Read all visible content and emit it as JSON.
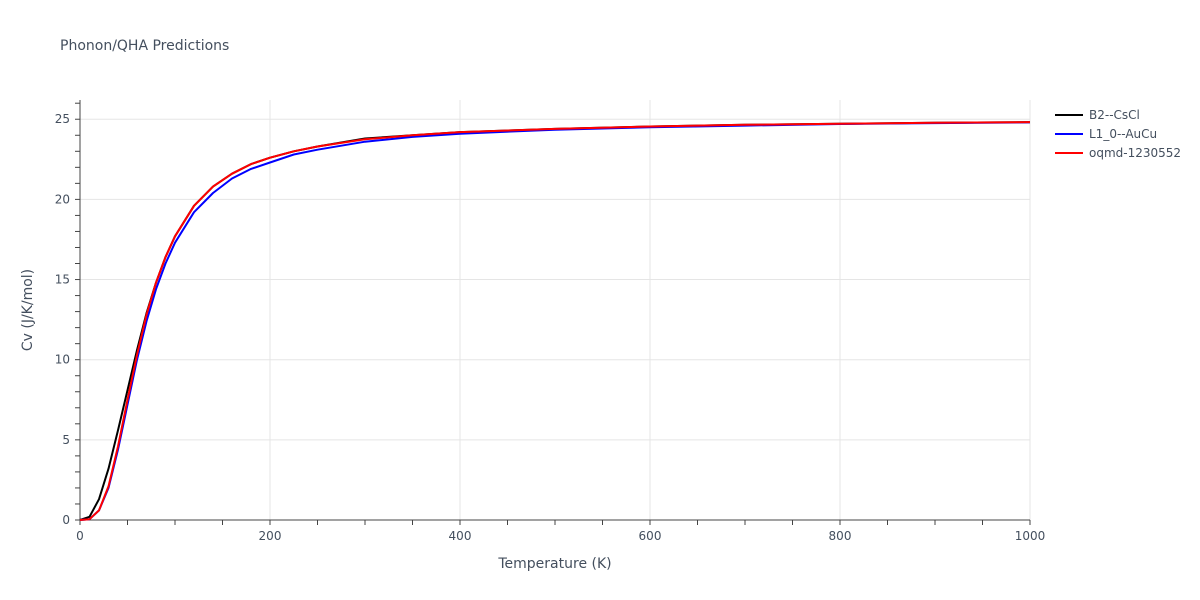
{
  "chart_data": {
    "type": "line",
    "title": "Phonon/QHA Predictions",
    "xlabel": "Temperature (K)",
    "ylabel": "Cv (J/K/mol)",
    "xlim": [
      0,
      1000
    ],
    "ylim": [
      0,
      26.2
    ],
    "x_ticks": [
      0,
      200,
      400,
      600,
      800,
      1000
    ],
    "y_ticks": [
      0,
      5,
      10,
      15,
      20,
      25
    ],
    "grid": true,
    "legend_position": "right",
    "series": [
      {
        "name": "B2--CsCl",
        "color": "#000000",
        "x": [
          0,
          10,
          20,
          30,
          40,
          50,
          60,
          70,
          80,
          90,
          100,
          120,
          140,
          160,
          180,
          200,
          225,
          250,
          300,
          350,
          400,
          500,
          600,
          700,
          800,
          900,
          1000
        ],
        "y": [
          0,
          0.2,
          1.3,
          3.2,
          5.6,
          8.1,
          10.6,
          12.9,
          14.8,
          16.4,
          17.7,
          19.6,
          20.8,
          21.6,
          22.2,
          22.6,
          23.0,
          23.3,
          23.8,
          24.0,
          24.2,
          24.4,
          24.55,
          24.65,
          24.72,
          24.78,
          24.82
        ]
      },
      {
        "name": "L1_0--AuCu",
        "color": "#0000ff",
        "x": [
          0,
          10,
          20,
          30,
          40,
          50,
          60,
          70,
          80,
          90,
          100,
          120,
          140,
          160,
          180,
          200,
          225,
          250,
          300,
          350,
          400,
          500,
          600,
          700,
          800,
          900,
          1000
        ],
        "y": [
          0,
          0.05,
          0.6,
          2.0,
          4.4,
          7.2,
          10.0,
          12.4,
          14.4,
          16.0,
          17.3,
          19.2,
          20.4,
          21.3,
          21.9,
          22.3,
          22.8,
          23.1,
          23.6,
          23.9,
          24.1,
          24.35,
          24.5,
          24.6,
          24.7,
          24.76,
          24.8
        ]
      },
      {
        "name": "oqmd-1230552",
        "color": "#ff0000",
        "x": [
          0,
          10,
          20,
          30,
          40,
          50,
          60,
          70,
          80,
          90,
          100,
          120,
          140,
          160,
          180,
          200,
          225,
          250,
          300,
          350,
          400,
          500,
          600,
          700,
          800,
          900,
          1000
        ],
        "y": [
          0,
          0.05,
          0.6,
          2.1,
          4.6,
          7.5,
          10.3,
          12.8,
          14.8,
          16.4,
          17.7,
          19.6,
          20.8,
          21.6,
          22.2,
          22.6,
          23.0,
          23.3,
          23.75,
          24.0,
          24.2,
          24.4,
          24.55,
          24.65,
          24.72,
          24.78,
          24.82
        ]
      }
    ]
  }
}
